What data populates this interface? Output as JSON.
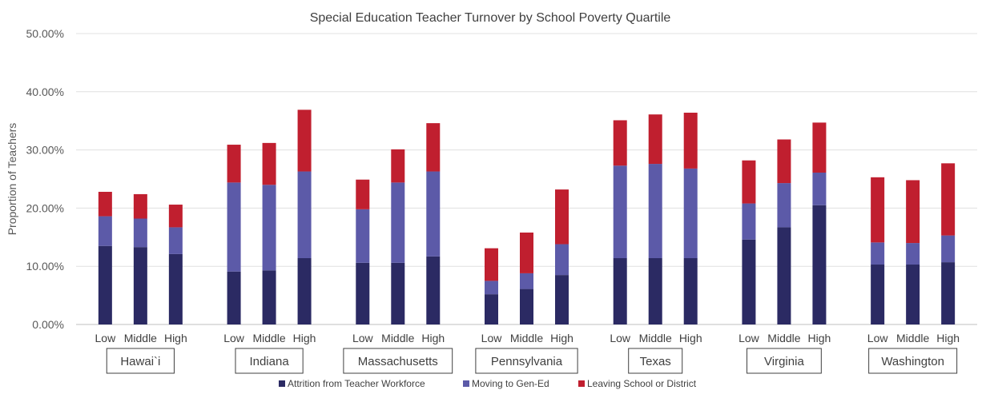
{
  "chart_data": {
    "type": "bar",
    "stacked": true,
    "title": "Special Education Teacher Turnover by School Poverty Quartile",
    "ylabel": "Proportion of Teachers",
    "xlabel": "",
    "ylim": [
      0,
      50
    ],
    "yticks": [
      "0.00%",
      "10.00%",
      "20.00%",
      "30.00%",
      "40.00%",
      "50.00%"
    ],
    "grid": true,
    "legend_position": "bottom",
    "subcategories": [
      "Low",
      "Middle",
      "High"
    ],
    "groups": [
      "Hawai`i",
      "Indiana",
      "Massachusetts",
      "Pennsylvania",
      "Texas",
      "Virginia",
      "Washington"
    ],
    "series": [
      {
        "name": "Attrition from Teacher Workforce",
        "color": "#2b2a63",
        "values": [
          [
            13.5,
            13.3,
            12.1
          ],
          [
            9.1,
            9.3,
            11.4
          ],
          [
            10.6,
            10.6,
            11.7
          ],
          [
            5.2,
            6.1,
            8.5
          ],
          [
            11.4,
            11.4,
            11.4
          ],
          [
            14.6,
            16.7,
            20.5
          ],
          [
            10.3,
            10.3,
            10.7
          ]
        ]
      },
      {
        "name": "Moving to Gen-Ed",
        "color": "#5c5aa8",
        "values": [
          [
            5.1,
            4.9,
            4.6
          ],
          [
            15.3,
            14.7,
            14.9
          ],
          [
            9.2,
            13.8,
            14.6
          ],
          [
            2.3,
            2.7,
            5.3
          ],
          [
            15.9,
            16.2,
            15.4
          ],
          [
            6.2,
            7.6,
            5.6
          ],
          [
            3.8,
            3.7,
            4.6
          ]
        ]
      },
      {
        "name": "Leaving School or District",
        "color": "#c01f2f",
        "values": [
          [
            4.2,
            4.2,
            3.9
          ],
          [
            6.5,
            7.2,
            10.6
          ],
          [
            5.1,
            5.7,
            8.3
          ],
          [
            5.6,
            7.0,
            9.4
          ],
          [
            7.8,
            8.5,
            9.6
          ],
          [
            7.4,
            7.5,
            8.6
          ],
          [
            11.2,
            10.8,
            12.4
          ]
        ]
      }
    ]
  }
}
